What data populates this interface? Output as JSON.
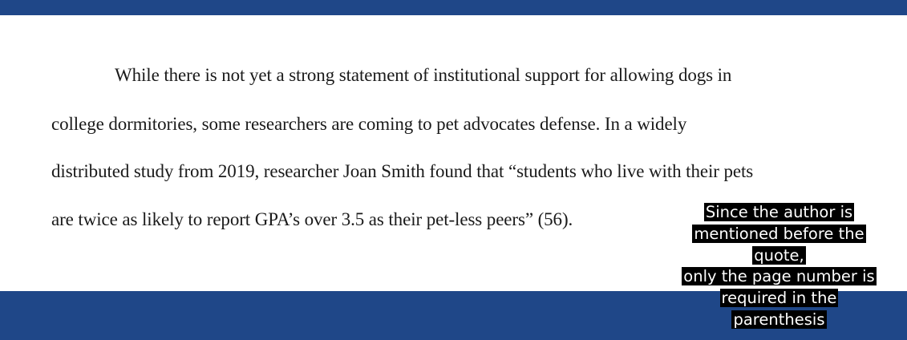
{
  "colors": {
    "band": "#1f4788",
    "page": "#ffffff",
    "text": "#1a1a1a",
    "callout_bg": "#000000",
    "callout_text": "#ffffff"
  },
  "document": {
    "lines": [
      "While there is not yet a strong statement of institutional support for allowing dogs in",
      "college dormitories, some researchers are coming to pet advocates defense. In a widely",
      "distributed study from 2019, researcher Joan Smith found that “students who live with their pets",
      "are twice as likely to report GPA’s over 3.5 as their pet-less peers” (56)."
    ]
  },
  "callout": {
    "lines": [
      "Since the author is",
      "mentioned before the",
      "quote,",
      "only the page number is",
      "required in the",
      "parenthesis"
    ]
  }
}
